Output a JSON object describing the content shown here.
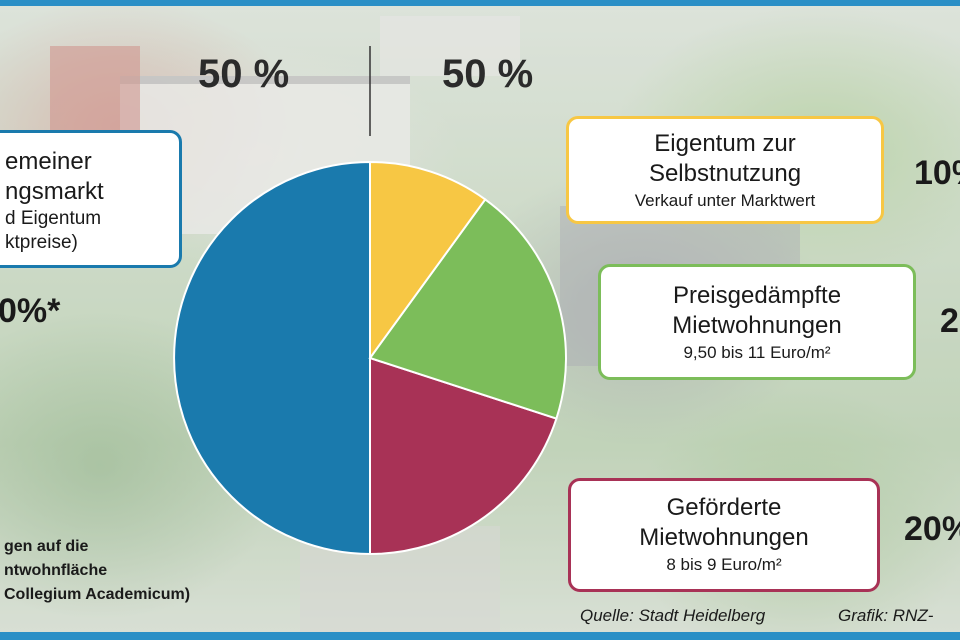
{
  "chart_data": {
    "type": "pie",
    "slices": [
      {
        "label": "Allgemeiner Wohnungsmarkt",
        "value": 50,
        "color": "#1a7aad"
      },
      {
        "label": "Eigentum zur Selbstnutzung",
        "value": 10,
        "color": "#f7c744"
      },
      {
        "label": "Preisgedämpfte Mietwohnungen",
        "value": 20,
        "color": "#7cbd5a"
      },
      {
        "label": "Geförderte Mietwohnungen",
        "value": 20,
        "color": "#a83256"
      }
    ],
    "top_labels": [
      "50 %",
      "50 %"
    ]
  },
  "left_box": {
    "line1": "emeiner",
    "line2": "ngsmarkt",
    "line3": "d Eigentum",
    "line4": "ktpreise)",
    "percent": "0%*",
    "border_color": "#1a7aad"
  },
  "boxes": [
    {
      "line1": "Eigentum zur",
      "line2": "Selbstnutzung",
      "line3": "Verkauf unter Marktwert",
      "percent": "10%",
      "border_color": "#f7c744"
    },
    {
      "line1": "Preisgedämpfte",
      "line2": "Mietwohnungen",
      "line3": "9,50 bis 11 Euro/m²",
      "percent": "2",
      "border_color": "#7cbd5a"
    },
    {
      "line1": "Geförderte",
      "line2": "Mietwohnungen",
      "line3": "8 bis 9 Euro/m²",
      "percent": "20%",
      "border_color": "#a83256"
    }
  ],
  "footnote": {
    "line1": "gen auf die",
    "line2": "ntwohnfläche",
    "line3": "Collegium Academicum)"
  },
  "credits": {
    "source": "Quelle: Stadt Heidelberg",
    "graphic": "Grafik: RNZ-"
  }
}
